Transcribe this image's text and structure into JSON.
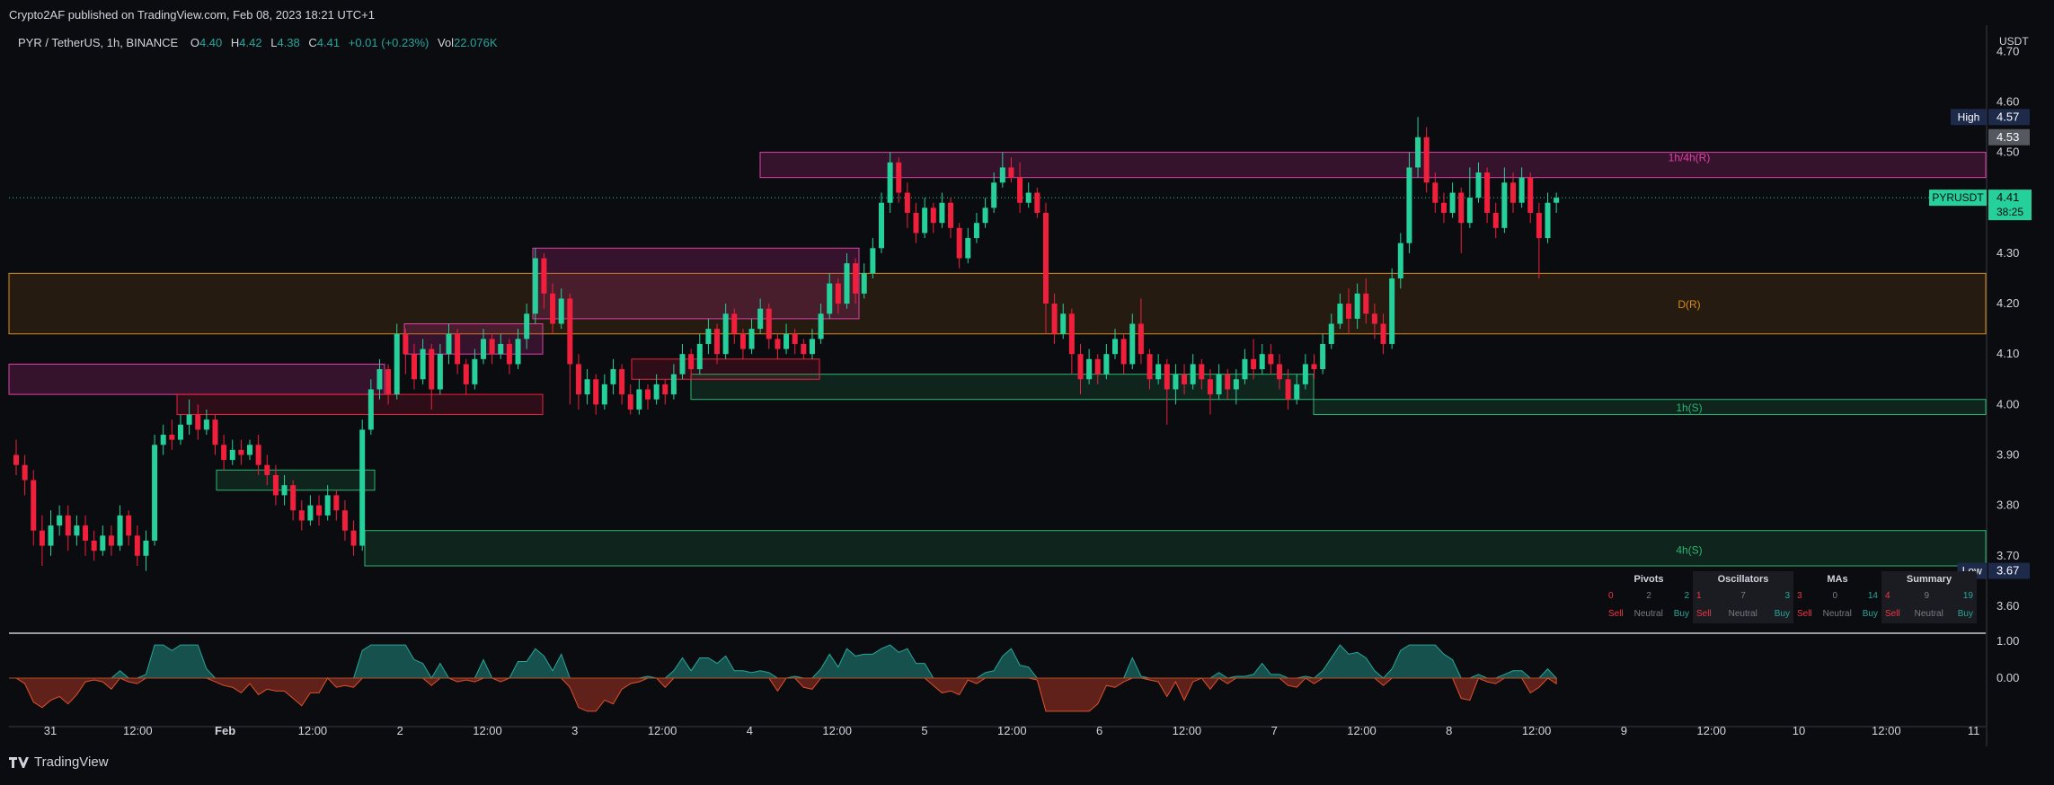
{
  "publish_line": "Crypto2AF published on TradingView.com, Feb 08, 2023 18:21 UTC+1",
  "brand": "TradingView",
  "legend": {
    "symbol": "PYR / TetherUS, 1h, BINANCE",
    "o_label": "O",
    "o_value": "4.40",
    "h_label": "H",
    "h_value": "4.42",
    "l_label": "L",
    "l_value": "4.38",
    "c_label": "C",
    "c_value": "4.41",
    "change": "+0.01 (+0.23%)",
    "vol_label": "Vol",
    "vol_value": "22.076K"
  },
  "price_axis": {
    "currency": "USDT",
    "ticks": [
      "4.70",
      "4.60",
      "4.50",
      "4.40",
      "4.30",
      "4.20",
      "4.10",
      "4.00",
      "3.90",
      "3.80",
      "3.70",
      "3.60"
    ],
    "high_label": "High",
    "high_value": "4.57",
    "prev_value": "4.53",
    "symbol_tag": "PYRUSDT",
    "last_value": "4.41",
    "countdown": "38:25",
    "low_label": "Low",
    "low_value": "3.67"
  },
  "osc_axis": {
    "ticks": [
      "1.00",
      "0.00"
    ]
  },
  "time_axis": {
    "ticks": [
      "31",
      "12:00",
      "Feb",
      "12:00",
      "2",
      "12:00",
      "3",
      "12:00",
      "4",
      "12:00",
      "5",
      "12:00",
      "6",
      "12:00",
      "7",
      "12:00",
      "8",
      "12:00",
      "9",
      "12:00",
      "10",
      "12:00",
      "11"
    ]
  },
  "tech_panel": {
    "blocks": [
      {
        "title": "Pivots",
        "sell": "0",
        "neutral": "2",
        "buy": "2"
      },
      {
        "title": "Oscillators",
        "sell": "1",
        "neutral": "7",
        "buy": "3"
      },
      {
        "title": "MAs",
        "sell": "3",
        "neutral": "0",
        "buy": "14"
      },
      {
        "title": "Summary",
        "sell": "4",
        "neutral": "9",
        "buy": "19"
      }
    ],
    "sell_label": "Sell",
    "neutral_label": "Neutral",
    "buy_label": "Buy"
  },
  "colors": {
    "bg": "#0b0c10",
    "up": "#26d09a",
    "down": "#f01f3c",
    "resistance": "#e040a8",
    "daily": "#d98a1c",
    "support": "#2bb673"
  },
  "chart_data": {
    "type": "candlestick",
    "symbol": "PYR / TetherUS",
    "interval": "1h",
    "ylim": [
      3.55,
      4.77
    ],
    "zones": [
      {
        "label": "1h/4h(R)",
        "kind": "resistance",
        "top": 4.5,
        "bottom": 4.45,
        "start": 38,
        "end": 100
      },
      {
        "label": "D(R)",
        "kind": "daily",
        "top": 4.26,
        "bottom": 4.14,
        "start": 0,
        "end": 100
      },
      {
        "label": "1h(S)",
        "kind": "support",
        "top": 4.01,
        "bottom": 3.98,
        "start": 66,
        "end": 100
      },
      {
        "label": "4h(S)",
        "kind": "support",
        "top": 3.75,
        "bottom": 3.68,
        "start": 18,
        "end": 100
      },
      {
        "label": "",
        "kind": "resistance",
        "top": 4.31,
        "bottom": 4.17,
        "start": 26.5,
        "end": 43
      },
      {
        "label": "",
        "kind": "resistance",
        "top": 4.16,
        "bottom": 4.1,
        "start": 20,
        "end": 27
      },
      {
        "label": "",
        "kind": "resistance",
        "top": 4.08,
        "bottom": 4.02,
        "start": 0,
        "end": 19
      },
      {
        "label": "",
        "kind": "down",
        "top": 4.02,
        "bottom": 3.98,
        "start": 8.5,
        "end": 27
      },
      {
        "label": "",
        "kind": "support",
        "top": 4.06,
        "bottom": 4.01,
        "start": 34.5,
        "end": 66
      },
      {
        "label": "",
        "kind": "support",
        "top": 3.87,
        "bottom": 3.83,
        "start": 10.5,
        "end": 18.5
      },
      {
        "label": "",
        "kind": "down",
        "top": 4.09,
        "bottom": 4.05,
        "start": 31.5,
        "end": 41
      }
    ],
    "candles": [
      [
        3.9,
        3.88,
        3.93,
        3.86
      ],
      [
        3.88,
        3.85,
        3.9,
        3.82
      ],
      [
        3.85,
        3.75,
        3.87,
        3.72
      ],
      [
        3.75,
        3.72,
        3.78,
        3.68
      ],
      [
        3.72,
        3.76,
        3.79,
        3.7
      ],
      [
        3.76,
        3.78,
        3.8,
        3.74
      ],
      [
        3.78,
        3.74,
        3.8,
        3.71
      ],
      [
        3.74,
        3.76,
        3.78,
        3.72
      ],
      [
        3.76,
        3.73,
        3.78,
        3.7
      ],
      [
        3.73,
        3.71,
        3.75,
        3.69
      ],
      [
        3.71,
        3.74,
        3.76,
        3.7
      ],
      [
        3.74,
        3.72,
        3.76,
        3.7
      ],
      [
        3.72,
        3.78,
        3.8,
        3.71
      ],
      [
        3.78,
        3.74,
        3.79,
        3.72
      ],
      [
        3.74,
        3.7,
        3.76,
        3.68
      ],
      [
        3.7,
        3.73,
        3.75,
        3.67
      ],
      [
        3.73,
        3.92,
        3.94,
        3.72
      ],
      [
        3.92,
        3.94,
        3.96,
        3.9
      ],
      [
        3.94,
        3.93,
        3.97,
        3.91
      ],
      [
        3.93,
        3.96,
        3.98,
        3.92
      ],
      [
        3.96,
        3.98,
        4.01,
        3.94
      ],
      [
        3.98,
        3.95,
        4.0,
        3.93
      ],
      [
        3.95,
        3.97,
        3.99,
        3.94
      ],
      [
        3.97,
        3.92,
        3.98,
        3.9
      ],
      [
        3.92,
        3.89,
        3.94,
        3.87
      ],
      [
        3.89,
        3.91,
        3.93,
        3.88
      ],
      [
        3.91,
        3.9,
        3.93,
        3.88
      ],
      [
        3.9,
        3.92,
        3.93,
        3.89
      ],
      [
        3.92,
        3.88,
        3.94,
        3.86
      ],
      [
        3.88,
        3.86,
        3.9,
        3.84
      ],
      [
        3.86,
        3.82,
        3.88,
        3.8
      ],
      [
        3.82,
        3.84,
        3.86,
        3.8
      ],
      [
        3.84,
        3.79,
        3.85,
        3.77
      ],
      [
        3.79,
        3.77,
        3.81,
        3.75
      ],
      [
        3.77,
        3.8,
        3.82,
        3.76
      ],
      [
        3.8,
        3.78,
        3.82,
        3.76
      ],
      [
        3.78,
        3.82,
        3.84,
        3.77
      ],
      [
        3.82,
        3.79,
        3.83,
        3.77
      ],
      [
        3.79,
        3.75,
        3.81,
        3.73
      ],
      [
        3.75,
        3.72,
        3.77,
        3.7
      ],
      [
        3.72,
        3.95,
        3.97,
        3.71
      ],
      [
        3.95,
        4.03,
        4.05,
        3.94
      ],
      [
        4.03,
        4.07,
        4.09,
        4.01
      ],
      [
        4.07,
        4.02,
        4.08,
        4.0
      ],
      [
        4.02,
        4.14,
        4.16,
        4.01
      ],
      [
        4.14,
        4.1,
        4.15,
        4.06
      ],
      [
        4.1,
        4.05,
        4.12,
        4.03
      ],
      [
        4.05,
        4.11,
        4.13,
        4.04
      ],
      [
        4.11,
        4.03,
        4.12,
        3.99
      ],
      [
        4.03,
        4.1,
        4.12,
        4.02
      ],
      [
        4.1,
        4.14,
        4.16,
        4.08
      ],
      [
        4.14,
        4.08,
        4.15,
        4.06
      ],
      [
        4.08,
        4.04,
        4.09,
        4.02
      ],
      [
        4.04,
        4.09,
        4.11,
        4.03
      ],
      [
        4.09,
        4.13,
        4.15,
        4.08
      ],
      [
        4.13,
        4.1,
        4.14,
        4.08
      ],
      [
        4.1,
        4.12,
        4.14,
        4.09
      ],
      [
        4.12,
        4.08,
        4.13,
        4.06
      ],
      [
        4.08,
        4.13,
        4.15,
        4.07
      ],
      [
        4.13,
        4.18,
        4.2,
        4.11
      ],
      [
        4.18,
        4.29,
        4.31,
        4.16
      ],
      [
        4.29,
        4.22,
        4.3,
        4.19
      ],
      [
        4.22,
        4.16,
        4.24,
        4.14
      ],
      [
        4.16,
        4.21,
        4.23,
        4.15
      ],
      [
        4.21,
        4.08,
        4.22,
        4.0
      ],
      [
        4.08,
        4.02,
        4.1,
        3.99
      ],
      [
        4.02,
        4.05,
        4.07,
        4.0
      ],
      [
        4.05,
        4.0,
        4.06,
        3.98
      ],
      [
        4.0,
        4.04,
        4.06,
        3.99
      ],
      [
        4.04,
        4.07,
        4.09,
        4.02
      ],
      [
        4.07,
        4.02,
        4.08,
        4.0
      ],
      [
        4.02,
        3.99,
        4.04,
        3.98
      ],
      [
        3.99,
        4.03,
        4.05,
        3.98
      ],
      [
        4.03,
        4.01,
        4.04,
        3.99
      ],
      [
        4.01,
        4.04,
        4.06,
        4.0
      ],
      [
        4.04,
        4.02,
        4.05,
        4.0
      ],
      [
        4.02,
        4.06,
        4.08,
        4.01
      ],
      [
        4.06,
        4.1,
        4.12,
        4.05
      ],
      [
        4.1,
        4.07,
        4.11,
        4.05
      ],
      [
        4.07,
        4.12,
        4.14,
        4.06
      ],
      [
        4.12,
        4.15,
        4.17,
        4.1
      ],
      [
        4.15,
        4.1,
        4.16,
        4.08
      ],
      [
        4.1,
        4.18,
        4.2,
        4.09
      ],
      [
        4.18,
        4.14,
        4.19,
        4.12
      ],
      [
        4.14,
        4.11,
        4.15,
        4.09
      ],
      [
        4.11,
        4.15,
        4.17,
        4.1
      ],
      [
        4.15,
        4.19,
        4.21,
        4.14
      ],
      [
        4.19,
        4.13,
        4.2,
        4.11
      ],
      [
        4.13,
        4.11,
        4.14,
        4.09
      ],
      [
        4.11,
        4.14,
        4.16,
        4.1
      ],
      [
        4.14,
        4.12,
        4.15,
        4.1
      ],
      [
        4.12,
        4.1,
        4.13,
        4.09
      ],
      [
        4.1,
        4.13,
        4.15,
        4.09
      ],
      [
        4.13,
        4.18,
        4.2,
        4.12
      ],
      [
        4.18,
        4.24,
        4.26,
        4.17
      ],
      [
        4.24,
        4.2,
        4.25,
        4.18
      ],
      [
        4.2,
        4.28,
        4.3,
        4.19
      ],
      [
        4.28,
        4.22,
        4.29,
        4.2
      ],
      [
        4.22,
        4.26,
        4.28,
        4.21
      ],
      [
        4.26,
        4.31,
        4.33,
        4.25
      ],
      [
        4.31,
        4.4,
        4.42,
        4.3
      ],
      [
        4.4,
        4.48,
        4.5,
        4.38
      ],
      [
        4.48,
        4.42,
        4.49,
        4.4
      ],
      [
        4.42,
        4.38,
        4.44,
        4.35
      ],
      [
        4.38,
        4.34,
        4.4,
        4.32
      ],
      [
        4.34,
        4.39,
        4.41,
        4.33
      ],
      [
        4.39,
        4.36,
        4.4,
        4.34
      ],
      [
        4.36,
        4.4,
        4.42,
        4.35
      ],
      [
        4.4,
        4.35,
        4.41,
        4.33
      ],
      [
        4.35,
        4.29,
        4.36,
        4.27
      ],
      [
        4.29,
        4.33,
        4.35,
        4.28
      ],
      [
        4.33,
        4.36,
        4.38,
        4.32
      ],
      [
        4.36,
        4.39,
        4.41,
        4.35
      ],
      [
        4.39,
        4.44,
        4.46,
        4.38
      ],
      [
        4.44,
        4.47,
        4.5,
        4.43
      ],
      [
        4.47,
        4.45,
        4.49,
        4.44
      ],
      [
        4.45,
        4.4,
        4.48,
        4.38
      ],
      [
        4.4,
        4.42,
        4.44,
        4.39
      ],
      [
        4.42,
        4.38,
        4.43,
        4.37
      ],
      [
        4.38,
        4.2,
        4.4,
        4.14
      ],
      [
        4.2,
        4.14,
        4.22,
        4.12
      ],
      [
        4.14,
        4.18,
        4.2,
        4.13
      ],
      [
        4.18,
        4.1,
        4.19,
        4.06
      ],
      [
        4.1,
        4.05,
        4.12,
        4.02
      ],
      [
        4.05,
        4.09,
        4.11,
        4.04
      ],
      [
        4.09,
        4.06,
        4.1,
        4.04
      ],
      [
        4.06,
        4.1,
        4.12,
        4.05
      ],
      [
        4.1,
        4.13,
        4.15,
        4.09
      ],
      [
        4.13,
        4.08,
        4.14,
        4.06
      ],
      [
        4.08,
        4.16,
        4.18,
        4.07
      ],
      [
        4.16,
        4.1,
        4.21,
        4.08
      ],
      [
        4.1,
        4.05,
        4.11,
        4.03
      ],
      [
        4.05,
        4.08,
        4.1,
        4.04
      ],
      [
        4.08,
        4.03,
        4.09,
        3.96
      ],
      [
        4.03,
        4.06,
        4.08,
        4.0
      ],
      [
        4.06,
        4.04,
        4.08,
        4.02
      ],
      [
        4.04,
        4.08,
        4.1,
        4.03
      ],
      [
        4.08,
        4.05,
        4.09,
        4.03
      ],
      [
        4.05,
        4.02,
        4.07,
        3.98
      ],
      [
        4.02,
        4.06,
        4.08,
        4.01
      ],
      [
        4.06,
        4.03,
        4.07,
        4.01
      ],
      [
        4.03,
        4.05,
        4.07,
        4.0
      ],
      [
        4.05,
        4.09,
        4.11,
        4.04
      ],
      [
        4.09,
        4.07,
        4.13,
        4.05
      ],
      [
        4.07,
        4.1,
        4.12,
        4.06
      ],
      [
        4.1,
        4.08,
        4.12,
        4.06
      ],
      [
        4.08,
        4.05,
        4.1,
        4.03
      ],
      [
        4.05,
        4.01,
        4.07,
        3.99
      ],
      [
        4.01,
        4.04,
        4.06,
        4.0
      ],
      [
        4.04,
        4.08,
        4.1,
        4.03
      ],
      [
        4.08,
        4.07,
        4.1,
        4.05
      ],
      [
        4.07,
        4.12,
        4.14,
        4.06
      ],
      [
        4.12,
        4.16,
        4.18,
        4.11
      ],
      [
        4.16,
        4.2,
        4.22,
        4.15
      ],
      [
        4.2,
        4.17,
        4.23,
        4.14
      ],
      [
        4.17,
        4.22,
        4.24,
        4.15
      ],
      [
        4.22,
        4.18,
        4.25,
        4.16
      ],
      [
        4.18,
        4.16,
        4.2,
        4.13
      ],
      [
        4.16,
        4.12,
        4.18,
        4.1
      ],
      [
        4.12,
        4.25,
        4.27,
        4.11
      ],
      [
        4.25,
        4.32,
        4.34,
        4.23
      ],
      [
        4.32,
        4.47,
        4.5,
        4.3
      ],
      [
        4.47,
        4.53,
        4.57,
        4.45
      ],
      [
        4.53,
        4.44,
        4.55,
        4.42
      ],
      [
        4.44,
        4.4,
        4.46,
        4.38
      ],
      [
        4.4,
        4.38,
        4.42,
        4.36
      ],
      [
        4.38,
        4.42,
        4.44,
        4.37
      ],
      [
        4.42,
        4.36,
        4.43,
        4.3
      ],
      [
        4.36,
        4.41,
        4.47,
        4.35
      ],
      [
        4.41,
        4.46,
        4.48,
        4.4
      ],
      [
        4.46,
        4.38,
        4.47,
        4.36
      ],
      [
        4.38,
        4.35,
        4.4,
        4.33
      ],
      [
        4.35,
        4.44,
        4.47,
        4.34
      ],
      [
        4.44,
        4.4,
        4.46,
        4.38
      ],
      [
        4.4,
        4.45,
        4.47,
        4.39
      ],
      [
        4.45,
        4.38,
        4.46,
        4.36
      ],
      [
        4.38,
        4.33,
        4.4,
        4.25
      ],
      [
        4.33,
        4.4,
        4.42,
        4.32
      ],
      [
        4.4,
        4.41,
        4.42,
        4.38
      ]
    ]
  }
}
